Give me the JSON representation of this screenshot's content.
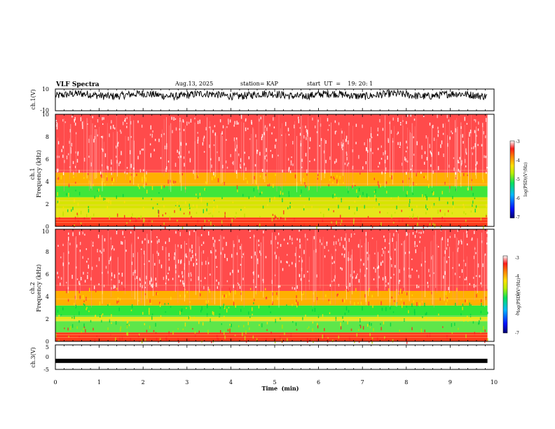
{
  "header": {
    "title": "VLF Spectra",
    "date": "Aug.13, 2025",
    "station": "station= KAP",
    "start_ut": "start  UT  =    19: 20: 1"
  },
  "chart_data": {
    "type": "spectrogram",
    "x_axis": {
      "label": "Time  (min)",
      "range": [
        0,
        10
      ],
      "ticks": [
        "0",
        "1",
        "2",
        "3",
        "4",
        "5",
        "6",
        "7",
        "8",
        "9",
        "10"
      ],
      "data_end_min": 9.85
    },
    "panels": [
      {
        "id": "ch1-waveform",
        "type": "line",
        "ylabel": "ch.1(V)",
        "ylim": [
          -10,
          10
        ],
        "yticks": [
          "10",
          "-10"
        ],
        "trace_mean_V": 4.5,
        "trace_swing_V": 3.5
      },
      {
        "id": "ch1-spectrogram",
        "type": "heatmap",
        "ylabel_line1": "ch.1",
        "ylabel_line2": "Frequency  (kHz)",
        "ylim_kHz": [
          0,
          10
        ],
        "yticks": [
          "0",
          "2",
          "4",
          "6",
          "8",
          "10"
        ],
        "color_bands_kHz": [
          {
            "from": 0.0,
            "to": 0.8,
            "color": "#ff3a1a"
          },
          {
            "from": 0.8,
            "to": 1.6,
            "color": "#e6e61a"
          },
          {
            "from": 1.6,
            "to": 2.6,
            "color": "#d7e400"
          },
          {
            "from": 2.6,
            "to": 3.6,
            "color": "#3fe63a"
          },
          {
            "from": 3.6,
            "to": 4.8,
            "color": "#ffb000"
          },
          {
            "from": 4.8,
            "to": 10.0,
            "color": "#ff4b4b"
          }
        ],
        "colorbar": {
          "label": "log(PSD)(V²/Hz)",
          "range": [
            -7,
            -3
          ],
          "ticks": [
            "-3",
            "-4",
            "-5",
            "-6",
            "-7"
          ]
        }
      },
      {
        "id": "ch2-spectrogram",
        "type": "heatmap",
        "ylabel_line1": "ch.2",
        "ylabel_line2": "Frequency  (kHz)",
        "ylim_kHz": [
          0,
          10
        ],
        "yticks": [
          "0",
          "2",
          "4",
          "6",
          "8",
          "10"
        ],
        "color_bands_kHz": [
          {
            "from": 0.0,
            "to": 0.8,
            "color": "#ff3a1a"
          },
          {
            "from": 0.8,
            "to": 1.8,
            "color": "#5fe64a"
          },
          {
            "from": 1.8,
            "to": 2.2,
            "color": "#e6e61a"
          },
          {
            "from": 2.2,
            "to": 3.2,
            "color": "#2fe63a"
          },
          {
            "from": 3.2,
            "to": 4.5,
            "color": "#ffb000"
          },
          {
            "from": 4.5,
            "to": 10.0,
            "color": "#ff4b4b"
          }
        ],
        "colorbar": {
          "label": "log(PSD)(V²/Hz)",
          "range": [
            -7,
            -3
          ],
          "ticks": [
            "-3",
            "-4",
            "-5",
            "-6",
            "-7"
          ]
        }
      },
      {
        "id": "ch3-waveform",
        "type": "line",
        "ylabel": "ch.3(V)",
        "ylim": [
          -5,
          5
        ],
        "yticks": [
          "5",
          "0",
          "-5"
        ],
        "trace_level_V": -1.5
      }
    ]
  }
}
